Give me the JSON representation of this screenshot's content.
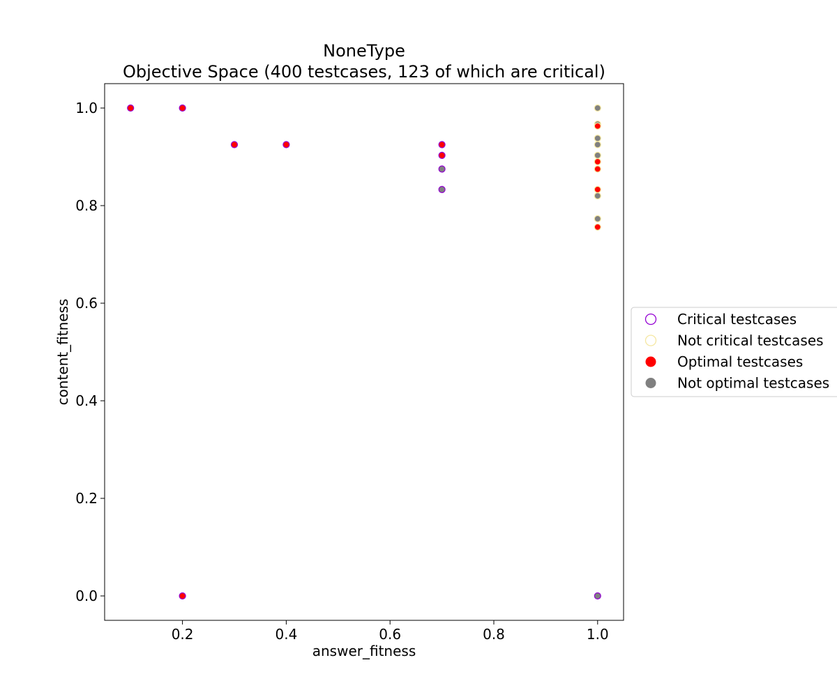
{
  "chart_data": {
    "type": "scatter",
    "title": "NoneType",
    "subtitle": "Objective Space (400 testcases, 123 of which are critical)",
    "xlabel": "answer_fitness",
    "ylabel": "content_fitness",
    "xlim": [
      0.05,
      1.05
    ],
    "ylim": [
      -0.05,
      1.05
    ],
    "xticks": [
      0.2,
      0.4,
      0.6,
      0.8,
      1.0
    ],
    "xtick_labels": [
      "0.2",
      "0.4",
      "0.6",
      "0.8",
      "1.0"
    ],
    "yticks": [
      0.0,
      0.2,
      0.4,
      0.6,
      0.8,
      1.0
    ],
    "ytick_labels": [
      "0.0",
      "0.2",
      "0.4",
      "0.6",
      "0.8",
      "1.0"
    ],
    "grid": false,
    "legend_placement": "outside-right",
    "colors": {
      "critical_edge": "#9400d3",
      "not_critical_edge": "#f5e7a0",
      "optimal_fill": "#ff0000",
      "not_optimal_fill": "#808080"
    },
    "legend": [
      {
        "label": "Critical testcases",
        "style": "critical"
      },
      {
        "label": "Not critical testcases",
        "style": "not_critical"
      },
      {
        "label": "Optimal testcases",
        "style": "optimal"
      },
      {
        "label": "Not optimal testcases",
        "style": "not_optimal"
      }
    ],
    "points": [
      {
        "x": 0.1,
        "y": 1.0,
        "critical": true,
        "optimal": true
      },
      {
        "x": 0.2,
        "y": 1.0,
        "critical": true,
        "optimal": true
      },
      {
        "x": 0.2,
        "y": 0.0,
        "critical": true,
        "optimal": true
      },
      {
        "x": 0.3,
        "y": 0.925,
        "critical": true,
        "optimal": true
      },
      {
        "x": 0.4,
        "y": 0.925,
        "critical": true,
        "optimal": true
      },
      {
        "x": 0.7,
        "y": 0.925,
        "critical": true,
        "optimal": true
      },
      {
        "x": 0.7,
        "y": 0.903,
        "critical": true,
        "optimal": true
      },
      {
        "x": 0.7,
        "y": 0.875,
        "critical": true,
        "optimal": false
      },
      {
        "x": 0.7,
        "y": 0.833,
        "critical": true,
        "optimal": false
      },
      {
        "x": 1.0,
        "y": 1.0,
        "critical": false,
        "optimal": false
      },
      {
        "x": 1.0,
        "y": 0.967,
        "critical": false,
        "optimal": false
      },
      {
        "x": 1.0,
        "y": 0.963,
        "critical": false,
        "optimal": true
      },
      {
        "x": 1.0,
        "y": 0.938,
        "critical": false,
        "optimal": false
      },
      {
        "x": 1.0,
        "y": 0.925,
        "critical": false,
        "optimal": false
      },
      {
        "x": 1.0,
        "y": 0.903,
        "critical": false,
        "optimal": false
      },
      {
        "x": 1.0,
        "y": 0.89,
        "critical": false,
        "optimal": true
      },
      {
        "x": 1.0,
        "y": 0.875,
        "critical": false,
        "optimal": true
      },
      {
        "x": 1.0,
        "y": 0.833,
        "critical": false,
        "optimal": true
      },
      {
        "x": 1.0,
        "y": 0.82,
        "critical": false,
        "optimal": false
      },
      {
        "x": 1.0,
        "y": 0.773,
        "critical": false,
        "optimal": false
      },
      {
        "x": 1.0,
        "y": 0.756,
        "critical": false,
        "optimal": true
      },
      {
        "x": 1.0,
        "y": 0.0,
        "critical": true,
        "optimal": false
      }
    ]
  }
}
